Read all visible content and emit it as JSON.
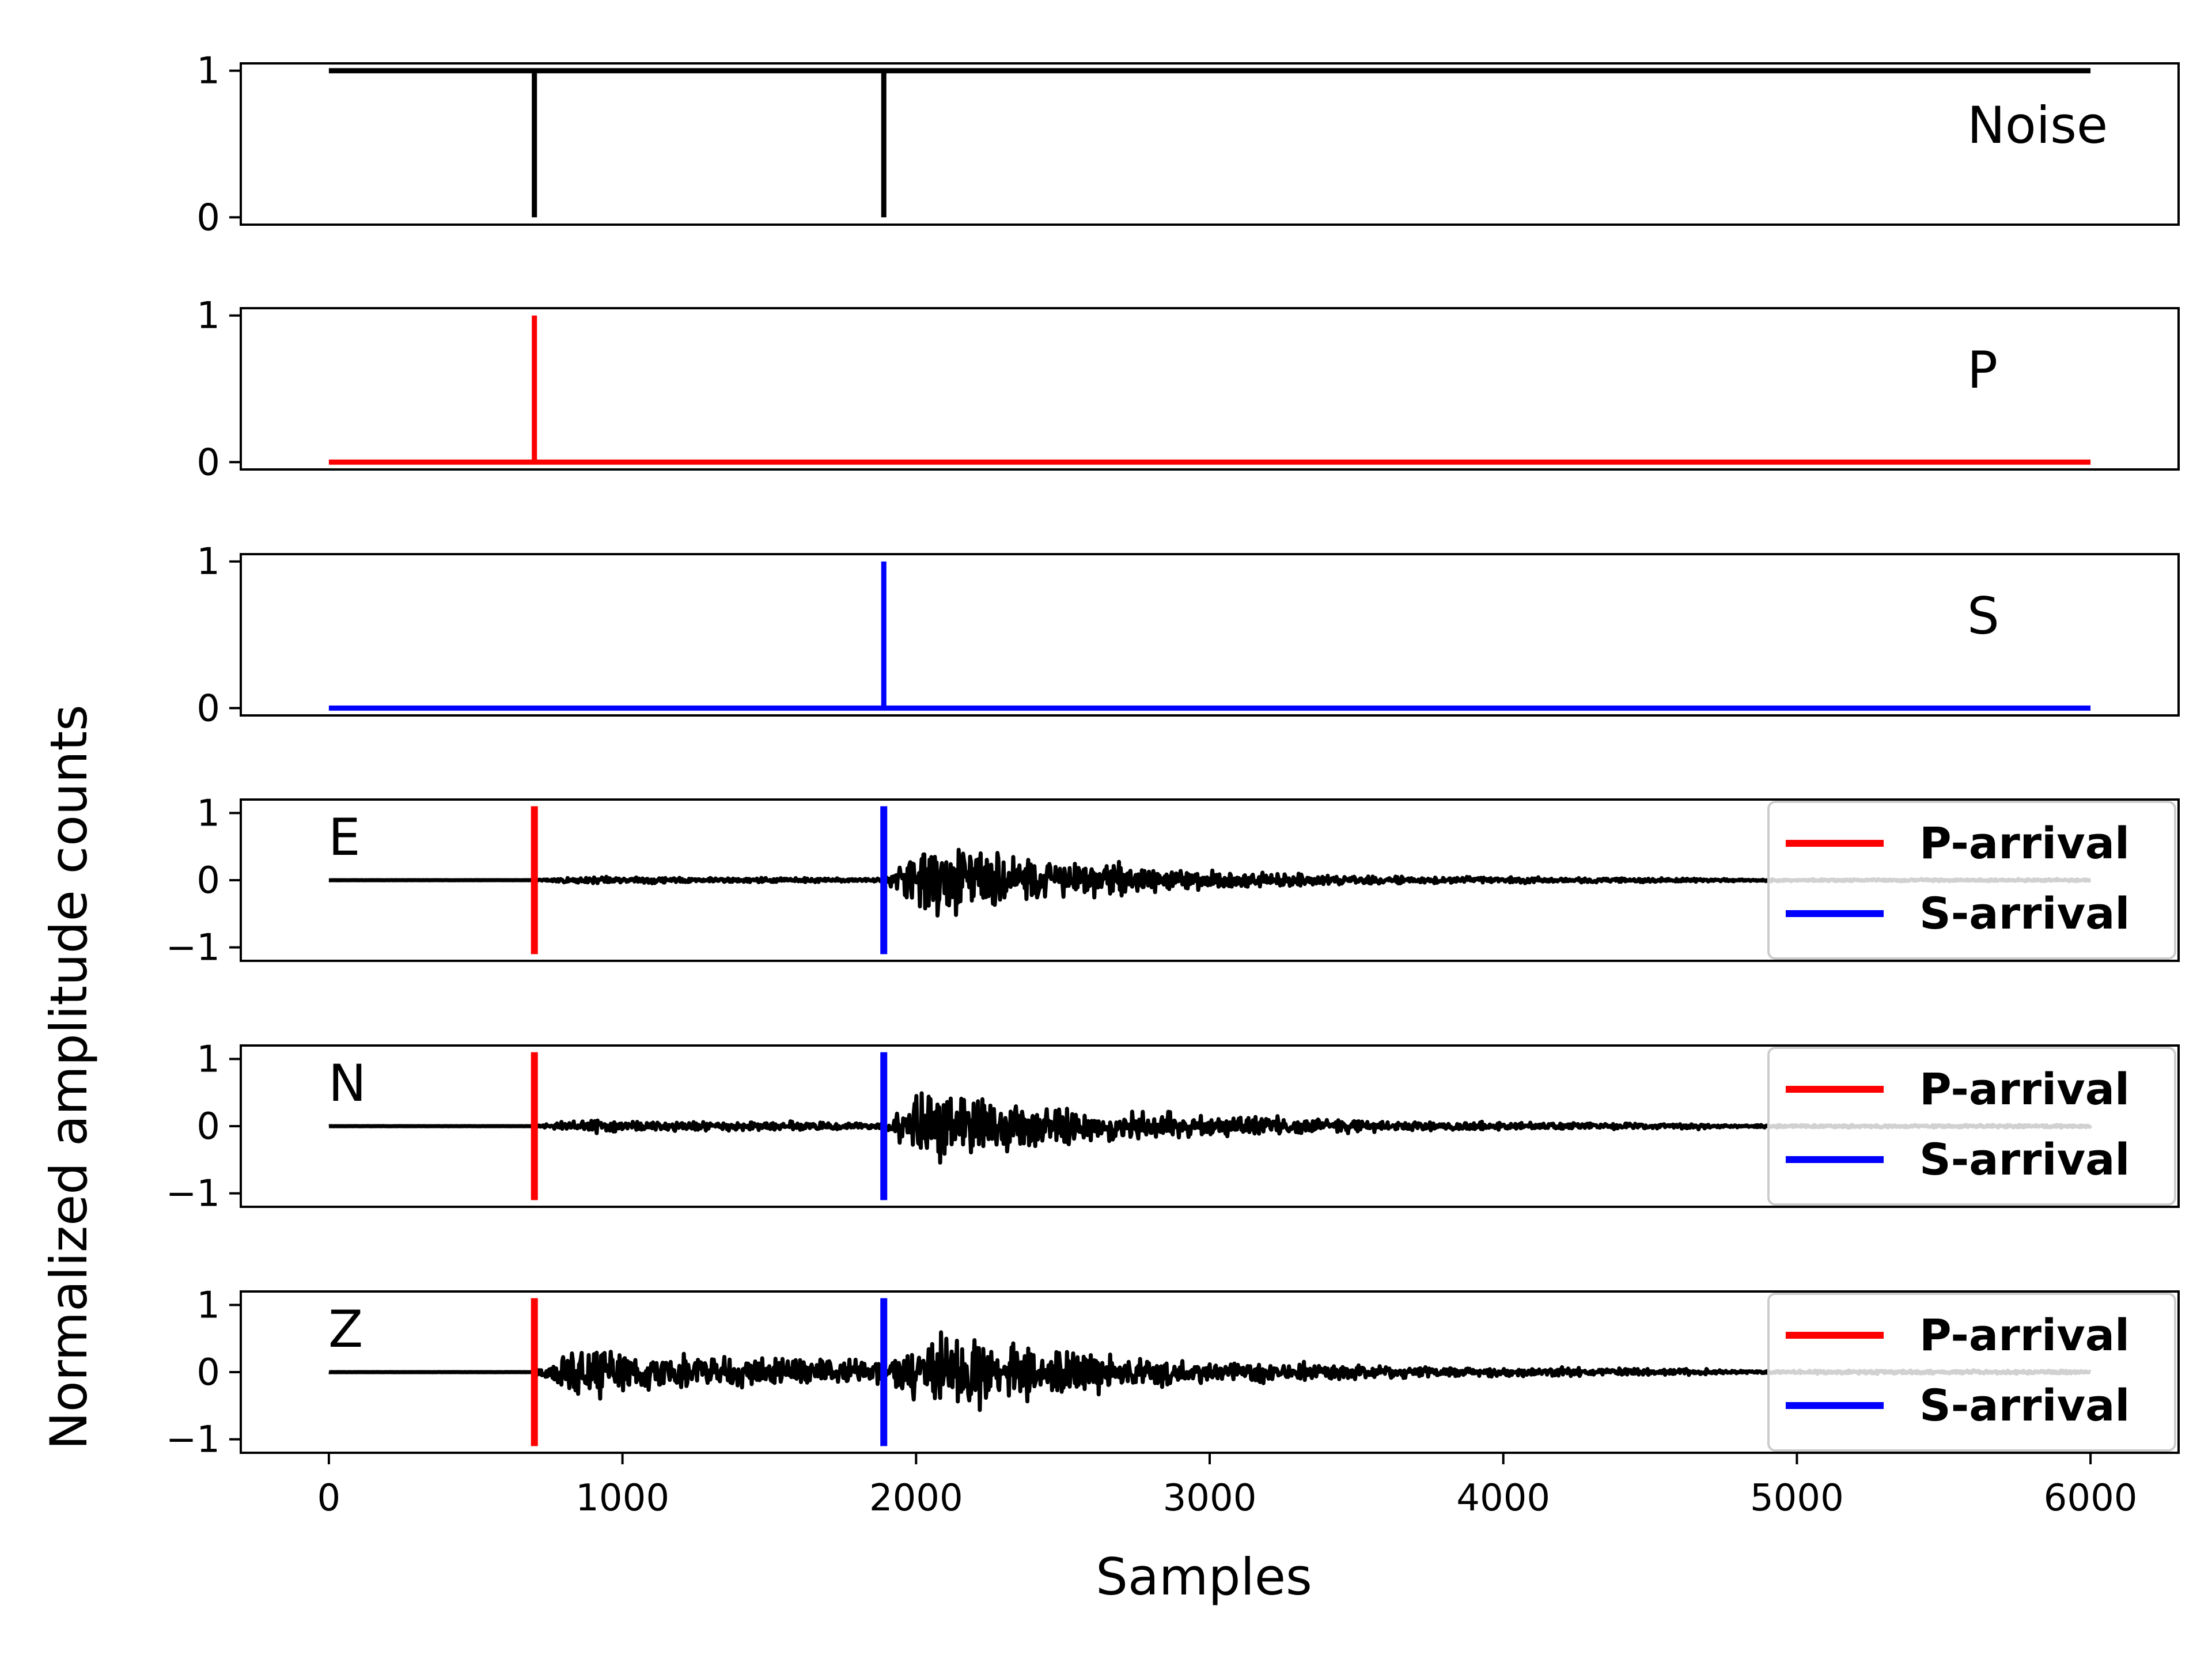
{
  "chart_data": {
    "type": "line",
    "ylabel": "Normalized amplitude counts",
    "xlabel": "Samples",
    "xlim": [
      -300,
      6300
    ],
    "x_ticks": [
      0,
      1000,
      2000,
      3000,
      4000,
      5000,
      6000
    ],
    "x_tick_labels": [
      "0",
      "1000",
      "2000",
      "3000",
      "4000",
      "5000",
      "6000"
    ],
    "n_samples": 6000,
    "p_arrival_sample": 700,
    "s_arrival_sample": 1890,
    "colors": {
      "noise": "#000000",
      "p": "#ff0000",
      "s": "#0000ff",
      "trace": "#000000"
    },
    "panels": [
      {
        "label": "Noise",
        "kind": "noise",
        "ylim": [
          -0.05,
          1.05
        ],
        "y_ticks": [
          0,
          1
        ],
        "y_tick_labels": [
          "0",
          "1"
        ],
        "color": "#000000",
        "series": [
          {
            "name": "Noise",
            "baseline": 1,
            "dips_to_0_at": [
              700,
              1890
            ]
          }
        ]
      },
      {
        "label": "P",
        "kind": "p",
        "ylim": [
          -0.05,
          1.05
        ],
        "y_ticks": [
          0,
          1
        ],
        "y_tick_labels": [
          "0",
          "1"
        ],
        "color": "#ff0000",
        "series": [
          {
            "name": "P",
            "baseline": 0,
            "peak_1_at": 700
          }
        ]
      },
      {
        "label": "S",
        "kind": "s",
        "ylim": [
          -0.05,
          1.05
        ],
        "y_ticks": [
          0,
          1
        ],
        "y_tick_labels": [
          "0",
          "1"
        ],
        "color": "#0000ff",
        "series": [
          {
            "name": "S",
            "baseline": 0,
            "peak_1_at": 1890
          }
        ]
      },
      {
        "label": "E",
        "kind": "trace",
        "ylim": [
          -1.2,
          1.2
        ],
        "y_ticks": [
          -1,
          0,
          1
        ],
        "y_tick_labels": [
          "−1",
          "0",
          "1"
        ],
        "seed": 11,
        "pre_p_amp": 0.03,
        "p_coda_amp": 0.07,
        "s_peak_amp": 1.0,
        "s_decay": 560,
        "tail_amp": 0.04,
        "legend": [
          "P-arrival",
          "S-arrival"
        ]
      },
      {
        "label": "N",
        "kind": "trace",
        "ylim": [
          -1.2,
          1.2
        ],
        "y_ticks": [
          -1,
          0,
          1
        ],
        "y_tick_labels": [
          "−1",
          "0",
          "1"
        ],
        "seed": 23,
        "pre_p_amp": 0.03,
        "p_coda_amp": 0.14,
        "s_peak_amp": 1.0,
        "s_decay": 640,
        "tail_amp": 0.05,
        "legend": [
          "P-arrival",
          "S-arrival"
        ]
      },
      {
        "label": "Z",
        "kind": "trace",
        "ylim": [
          -1.2,
          1.2
        ],
        "y_ticks": [
          -1,
          0,
          1
        ],
        "y_tick_labels": [
          "−1",
          "0",
          "1"
        ],
        "seed": 37,
        "pre_p_amp": 0.03,
        "p_coda_amp": 0.65,
        "s_peak_amp": 1.0,
        "s_decay": 700,
        "tail_amp": 0.06,
        "legend": [
          "P-arrival",
          "S-arrival"
        ]
      }
    ],
    "legend": {
      "placement": "right",
      "entries": [
        {
          "label": "P-arrival",
          "color": "#ff0000"
        },
        {
          "label": "S-arrival",
          "color": "#0000ff"
        }
      ]
    },
    "grid": false
  }
}
